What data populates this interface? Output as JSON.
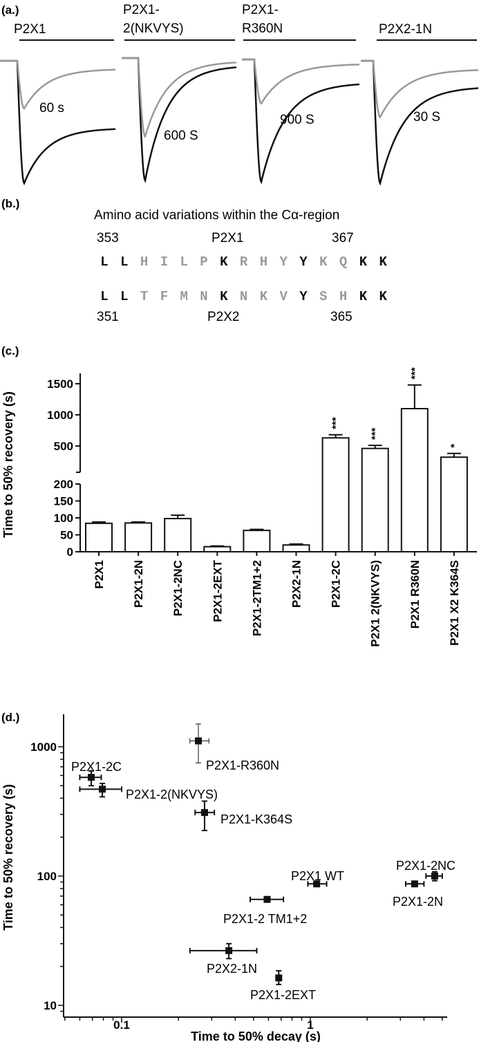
{
  "panel_labels": {
    "a": "(a.)",
    "b": "(b.)",
    "c": "(c.)",
    "d": "(d.)"
  },
  "panel_a": {
    "traces": [
      {
        "title_lines": [
          "P2X1"
        ],
        "interval_label": "60 s",
        "grey_peak_ratio": 0.39,
        "black_residual": 0.55,
        "grey_residual": 0.17
      },
      {
        "title_lines": [
          "P2X1-",
          "2(NKVYS)"
        ],
        "interval_label": "600 S",
        "grey_peak_ratio": 0.64,
        "black_residual": 0.06,
        "grey_residual": 0.04
      },
      {
        "title_lines": [
          "P2X1-",
          "R360N"
        ],
        "interval_label": "900 S",
        "grey_peak_ratio": 0.36,
        "black_residual": 0.19,
        "grey_residual": 0.1
      },
      {
        "title_lines": [
          "P2X2-1N"
        ],
        "interval_label": "30 S",
        "grey_peak_ratio": 0.46,
        "black_residual": 0.21,
        "grey_residual": 0.15
      }
    ]
  },
  "panel_b": {
    "title": "Amino acid variations within the Cα-region",
    "p2x1": {
      "start": "353",
      "name": "P2X1",
      "end": "367",
      "residues": [
        "L",
        "L",
        "H",
        "I",
        "L",
        "P",
        "K",
        "R",
        "H",
        "Y",
        "Y",
        "K",
        "Q",
        "K",
        "K"
      ],
      "conserved": [
        1,
        1,
        0,
        0,
        0,
        0,
        1,
        0,
        0,
        0,
        1,
        0,
        0,
        1,
        1
      ]
    },
    "p2x2": {
      "start": "351",
      "name": "P2X2",
      "end": "365",
      "residues": [
        "L",
        "L",
        "T",
        "F",
        "M",
        "N",
        "K",
        "N",
        "K",
        "V",
        "Y",
        "S",
        "H",
        "K",
        "K"
      ],
      "conserved": [
        1,
        1,
        0,
        0,
        0,
        0,
        1,
        0,
        0,
        0,
        1,
        0,
        0,
        1,
        1
      ]
    },
    "colors": {
      "conserved": "#111111",
      "variable": "#9a9a9a"
    }
  },
  "chart_data": [
    {
      "type": "bar",
      "title": "",
      "ylabel": "Time to 50% recovery (s)",
      "xlabel": "",
      "y_axis_break": true,
      "y_lower_ticks": [
        "0",
        "50",
        "100",
        "150",
        "200"
      ],
      "y_upper_ticks": [
        "500",
        "1000",
        "1500"
      ],
      "ylim_lower": [
        0,
        200
      ],
      "ylim_upper": [
        80,
        1650
      ],
      "categories": [
        "P2X1",
        "P2X1-2N",
        "P2X1-2NC",
        "P2X1-2EXT",
        "P2X1-2TM1+2",
        "P2X2-1N",
        "P2X1-2C",
        "P2X1 2(NKVYS)",
        "P2X1 R360N",
        "P2X1 X2 K364S"
      ],
      "values": [
        84,
        85,
        98,
        15,
        63,
        20,
        630,
        460,
        1100,
        320
      ],
      "errors": [
        4,
        3,
        10,
        2,
        3,
        3,
        50,
        50,
        380,
        60
      ],
      "significance": [
        "",
        "",
        "",
        "",
        "",
        "",
        "***",
        "***",
        "***",
        "*"
      ]
    },
    {
      "type": "scatter",
      "title": "",
      "xlabel": "Time to 50% decay (s)",
      "ylabel": "Time to 50% recovery (s)",
      "xscale": "log",
      "yscale": "log",
      "xlim": [
        0.049,
        5.3
      ],
      "ylim": [
        8,
        1780
      ],
      "x_ticks": [
        "0.1",
        "1"
      ],
      "y_ticks": [
        "10",
        "100",
        "1000"
      ],
      "points": [
        {
          "label": "P2X1-R360N",
          "x": 0.255,
          "y": 1110,
          "x_lo": 0.23,
          "x_hi": 0.29,
          "y_lo": 750,
          "y_hi": 1500
        },
        {
          "label": "P2X1-2C",
          "x": 0.069,
          "y": 580,
          "x_lo": 0.06,
          "x_hi": 0.078,
          "y_lo": 500,
          "y_hi": 650
        },
        {
          "label": "P2X1-2(NKVYS)",
          "x": 0.079,
          "y": 470,
          "x_lo": 0.06,
          "x_hi": 0.1,
          "y_lo": 410,
          "y_hi": 520
        },
        {
          "label": "P2X1-K364S",
          "x": 0.275,
          "y": 310,
          "x_lo": 0.245,
          "x_hi": 0.31,
          "y_lo": 225,
          "y_hi": 380
        },
        {
          "label": "P2X1  WT",
          "x": 1.08,
          "y": 87,
          "x_lo": 0.97,
          "x_hi": 1.22,
          "y_lo": 84,
          "y_hi": 90
        },
        {
          "label": "P2X1-2 TM1+2",
          "x": 0.59,
          "y": 66,
          "x_lo": 0.48,
          "x_hi": 0.72,
          "y_lo": 64,
          "y_hi": 68
        },
        {
          "label": "P2X1-2NC",
          "x": 4.56,
          "y": 100,
          "x_lo": 4.1,
          "x_hi": 5.0,
          "y_lo": 92,
          "y_hi": 108
        },
        {
          "label": "P2X1-2N",
          "x": 3.57,
          "y": 87,
          "x_lo": 3.2,
          "x_hi": 4.0,
          "y_lo": 85,
          "y_hi": 89
        },
        {
          "label": "P2X2-1N",
          "x": 0.37,
          "y": 26.5,
          "x_lo": 0.23,
          "x_hi": 0.52,
          "y_lo": 23,
          "y_hi": 30
        },
        {
          "label": "P2X1-2EXT",
          "x": 0.68,
          "y": 16.3,
          "x_lo": 0.66,
          "x_hi": 0.7,
          "y_lo": 14.5,
          "y_hi": 18.5
        }
      ]
    }
  ]
}
